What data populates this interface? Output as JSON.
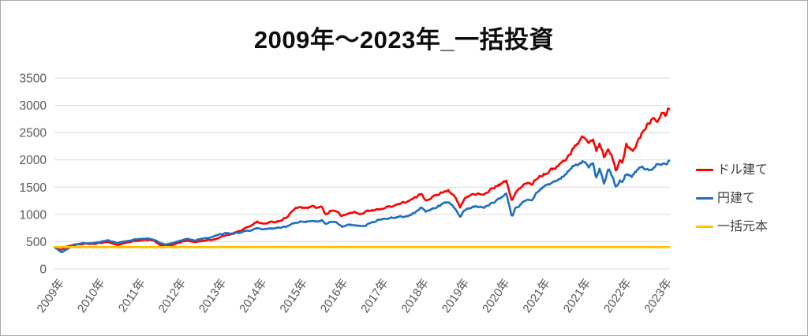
{
  "title": "2009年～2023年_一括投資",
  "legend": {
    "items": [
      {
        "id": "usd",
        "label": "ドル建て",
        "color": "#fe0000"
      },
      {
        "id": "jpy",
        "label": "円建て",
        "color": "#1e6fc0"
      },
      {
        "id": "principal",
        "label": "一括元本",
        "color": "#ffc000"
      }
    ]
  },
  "colors": {
    "gridline": "#d9d9d9",
    "axis_label": "#595959",
    "legend_text": "#404040",
    "frame_border": "#a9a9a9",
    "background": "#ffffff"
  },
  "chart_data": {
    "type": "line",
    "title": "2009年～2023年_一括投資",
    "xlabel": "",
    "ylabel": "",
    "grid": "horizontal",
    "legend_position": "right",
    "ylim": [
      0,
      3500
    ],
    "y_ticks": [
      0,
      500,
      1000,
      1500,
      2000,
      2500,
      3000,
      3500
    ],
    "x_domain": [
      2009,
      2024.2
    ],
    "x_tick_labels": [
      "2009年",
      "2010年",
      "2011年",
      "2012年",
      "2013年",
      "2014年",
      "2015年",
      "2016年",
      "2017年",
      "2018年",
      "2019年",
      "2020年",
      "2021年",
      "2021年",
      "2022年",
      "2023年"
    ],
    "series": [
      {
        "name": "ドル建て",
        "color": "#fe0000",
        "jitter": 0.013,
        "points": [
          [
            2009.0,
            405
          ],
          [
            2009.08,
            385
          ],
          [
            2009.15,
            350
          ],
          [
            2009.22,
            370
          ],
          [
            2009.35,
            420
          ],
          [
            2009.5,
            445
          ],
          [
            2009.65,
            450
          ],
          [
            2009.8,
            465
          ],
          [
            2009.9,
            455
          ],
          [
            2010.0,
            460
          ],
          [
            2010.15,
            480
          ],
          [
            2010.3,
            500
          ],
          [
            2010.45,
            465
          ],
          [
            2010.55,
            440
          ],
          [
            2010.7,
            465
          ],
          [
            2010.85,
            490
          ],
          [
            2011.0,
            515
          ],
          [
            2011.15,
            525
          ],
          [
            2011.3,
            535
          ],
          [
            2011.45,
            520
          ],
          [
            2011.6,
            440
          ],
          [
            2011.75,
            405
          ],
          [
            2011.9,
            440
          ],
          [
            2012.0,
            465
          ],
          [
            2012.15,
            500
          ],
          [
            2012.3,
            520
          ],
          [
            2012.45,
            490
          ],
          [
            2012.6,
            510
          ],
          [
            2012.75,
            525
          ],
          [
            2012.9,
            535
          ],
          [
            2013.0,
            555
          ],
          [
            2013.15,
            600
          ],
          [
            2013.3,
            630
          ],
          [
            2013.45,
            665
          ],
          [
            2013.6,
            700
          ],
          [
            2013.75,
            760
          ],
          [
            2013.9,
            820
          ],
          [
            2014.0,
            865
          ],
          [
            2014.15,
            825
          ],
          [
            2014.3,
            850
          ],
          [
            2014.45,
            865
          ],
          [
            2014.6,
            890
          ],
          [
            2014.75,
            960
          ],
          [
            2014.9,
            1080
          ],
          [
            2015.05,
            1140
          ],
          [
            2015.2,
            1110
          ],
          [
            2015.35,
            1140
          ],
          [
            2015.5,
            1120
          ],
          [
            2015.6,
            1140
          ],
          [
            2015.7,
            990
          ],
          [
            2015.8,
            1065
          ],
          [
            2015.95,
            1070
          ],
          [
            2016.1,
            965
          ],
          [
            2016.25,
            1015
          ],
          [
            2016.4,
            1045
          ],
          [
            2016.55,
            1000
          ],
          [
            2016.7,
            1060
          ],
          [
            2016.85,
            1070
          ],
          [
            2017.0,
            1090
          ],
          [
            2017.2,
            1130
          ],
          [
            2017.4,
            1170
          ],
          [
            2017.6,
            1210
          ],
          [
            2017.8,
            1260
          ],
          [
            2017.95,
            1320
          ],
          [
            2018.07,
            1385
          ],
          [
            2018.17,
            1260
          ],
          [
            2018.3,
            1310
          ],
          [
            2018.45,
            1355
          ],
          [
            2018.6,
            1420
          ],
          [
            2018.72,
            1450
          ],
          [
            2018.82,
            1380
          ],
          [
            2018.92,
            1280
          ],
          [
            2019.02,
            1120
          ],
          [
            2019.12,
            1280
          ],
          [
            2019.25,
            1350
          ],
          [
            2019.4,
            1385
          ],
          [
            2019.5,
            1370
          ],
          [
            2019.6,
            1340
          ],
          [
            2019.75,
            1450
          ],
          [
            2019.9,
            1510
          ],
          [
            2020.05,
            1560
          ],
          [
            2020.16,
            1620
          ],
          [
            2020.24,
            1380
          ],
          [
            2020.3,
            1255
          ],
          [
            2020.38,
            1390
          ],
          [
            2020.5,
            1480
          ],
          [
            2020.6,
            1540
          ],
          [
            2020.68,
            1590
          ],
          [
            2020.78,
            1550
          ],
          [
            2020.9,
            1660
          ],
          [
            2021.0,
            1715
          ],
          [
            2021.15,
            1760
          ],
          [
            2021.3,
            1830
          ],
          [
            2021.45,
            1900
          ],
          [
            2021.6,
            1990
          ],
          [
            2021.75,
            2120
          ],
          [
            2021.85,
            2270
          ],
          [
            2021.95,
            2330
          ],
          [
            2022.07,
            2435
          ],
          [
            2022.2,
            2300
          ],
          [
            2022.3,
            2390
          ],
          [
            2022.38,
            2180
          ],
          [
            2022.47,
            2300
          ],
          [
            2022.57,
            2060
          ],
          [
            2022.68,
            2180
          ],
          [
            2022.75,
            2100
          ],
          [
            2022.87,
            1790
          ],
          [
            2022.97,
            1990
          ],
          [
            2023.03,
            1930
          ],
          [
            2023.12,
            2270
          ],
          [
            2023.2,
            2210
          ],
          [
            2023.28,
            2150
          ],
          [
            2023.4,
            2330
          ],
          [
            2023.55,
            2550
          ],
          [
            2023.65,
            2660
          ],
          [
            2023.8,
            2800
          ],
          [
            2023.9,
            2730
          ],
          [
            2024.0,
            2900
          ],
          [
            2024.08,
            2830
          ],
          [
            2024.15,
            2920
          ],
          [
            2024.2,
            2960
          ]
        ]
      },
      {
        "name": "円建て",
        "color": "#1e6fc0",
        "jitter": 0.013,
        "points": [
          [
            2009.0,
            400
          ],
          [
            2009.08,
            360
          ],
          [
            2009.18,
            300
          ],
          [
            2009.28,
            350
          ],
          [
            2009.4,
            410
          ],
          [
            2009.55,
            450
          ],
          [
            2009.7,
            470
          ],
          [
            2009.85,
            470
          ],
          [
            2010.0,
            475
          ],
          [
            2010.15,
            500
          ],
          [
            2010.3,
            525
          ],
          [
            2010.45,
            495
          ],
          [
            2010.55,
            475
          ],
          [
            2010.7,
            500
          ],
          [
            2010.85,
            520
          ],
          [
            2011.0,
            540
          ],
          [
            2011.15,
            550
          ],
          [
            2011.3,
            555
          ],
          [
            2011.45,
            540
          ],
          [
            2011.6,
            480
          ],
          [
            2011.75,
            450
          ],
          [
            2011.9,
            470
          ],
          [
            2012.0,
            490
          ],
          [
            2012.15,
            530
          ],
          [
            2012.3,
            550
          ],
          [
            2012.45,
            520
          ],
          [
            2012.6,
            545
          ],
          [
            2012.75,
            565
          ],
          [
            2012.9,
            585
          ],
          [
            2013.0,
            610
          ],
          [
            2013.1,
            640
          ],
          [
            2013.25,
            655
          ],
          [
            2013.4,
            645
          ],
          [
            2013.55,
            665
          ],
          [
            2013.7,
            685
          ],
          [
            2013.85,
            705
          ],
          [
            2014.0,
            745
          ],
          [
            2014.15,
            720
          ],
          [
            2014.3,
            735
          ],
          [
            2014.45,
            745
          ],
          [
            2014.6,
            755
          ],
          [
            2014.75,
            785
          ],
          [
            2014.9,
            830
          ],
          [
            2015.05,
            865
          ],
          [
            2015.2,
            860
          ],
          [
            2015.35,
            885
          ],
          [
            2015.5,
            875
          ],
          [
            2015.6,
            895
          ],
          [
            2015.7,
            820
          ],
          [
            2015.8,
            860
          ],
          [
            2015.95,
            855
          ],
          [
            2016.1,
            775
          ],
          [
            2016.25,
            805
          ],
          [
            2016.4,
            815
          ],
          [
            2016.55,
            780
          ],
          [
            2016.7,
            805
          ],
          [
            2016.85,
            850
          ],
          [
            2017.0,
            905
          ],
          [
            2017.2,
            925
          ],
          [
            2017.4,
            945
          ],
          [
            2017.6,
            955
          ],
          [
            2017.8,
            995
          ],
          [
            2017.95,
            1060
          ],
          [
            2018.07,
            1135
          ],
          [
            2018.17,
            1055
          ],
          [
            2018.3,
            1085
          ],
          [
            2018.45,
            1130
          ],
          [
            2018.6,
            1190
          ],
          [
            2018.72,
            1230
          ],
          [
            2018.82,
            1170
          ],
          [
            2018.92,
            1100
          ],
          [
            2019.02,
            950
          ],
          [
            2019.12,
            1080
          ],
          [
            2019.25,
            1120
          ],
          [
            2019.4,
            1150
          ],
          [
            2019.5,
            1140
          ],
          [
            2019.6,
            1120
          ],
          [
            2019.75,
            1180
          ],
          [
            2019.9,
            1250
          ],
          [
            2020.05,
            1310
          ],
          [
            2020.16,
            1400
          ],
          [
            2020.24,
            1130
          ],
          [
            2020.3,
            950
          ],
          [
            2020.38,
            1110
          ],
          [
            2020.5,
            1170
          ],
          [
            2020.6,
            1240
          ],
          [
            2020.68,
            1290
          ],
          [
            2020.78,
            1260
          ],
          [
            2020.9,
            1380
          ],
          [
            2021.0,
            1450
          ],
          [
            2021.15,
            1530
          ],
          [
            2021.3,
            1580
          ],
          [
            2021.45,
            1640
          ],
          [
            2021.6,
            1710
          ],
          [
            2021.75,
            1840
          ],
          [
            2021.85,
            1900
          ],
          [
            2021.95,
            1930
          ],
          [
            2022.08,
            1985
          ],
          [
            2022.2,
            1870
          ],
          [
            2022.3,
            1940
          ],
          [
            2022.38,
            1665
          ],
          [
            2022.47,
            1840
          ],
          [
            2022.57,
            1570
          ],
          [
            2022.68,
            1810
          ],
          [
            2022.75,
            1740
          ],
          [
            2022.87,
            1490
          ],
          [
            2022.97,
            1640
          ],
          [
            2023.03,
            1580
          ],
          [
            2023.12,
            1740
          ],
          [
            2023.25,
            1700
          ],
          [
            2023.35,
            1790
          ],
          [
            2023.5,
            1880
          ],
          [
            2023.6,
            1820
          ],
          [
            2023.7,
            1790
          ],
          [
            2023.82,
            1880
          ],
          [
            2023.94,
            1950
          ],
          [
            2024.02,
            1930
          ],
          [
            2024.08,
            1900
          ],
          [
            2024.15,
            1970
          ],
          [
            2024.2,
            2025
          ]
        ]
      },
      {
        "name": "一括元本",
        "color": "#ffc000",
        "jitter": 0,
        "points": [
          [
            2009.0,
            400
          ],
          [
            2024.2,
            400
          ]
        ]
      }
    ]
  }
}
